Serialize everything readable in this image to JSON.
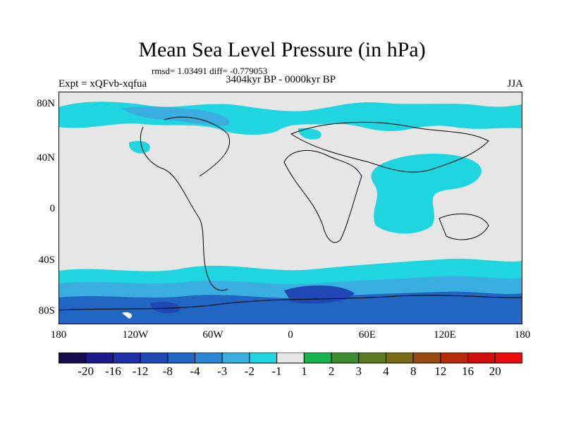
{
  "title": "Mean Sea Level Pressure (in hPa)",
  "stats": "rmsd= 1.03491  diff= -0.779053",
  "experiment": "Expt = xQFvb-xqfua",
  "period": "3404kyr BP - 0000kyr BP",
  "season": "JJA",
  "lat_labels": [
    "80N",
    "40N",
    "0",
    "40S",
    "80S"
  ],
  "lon_labels": [
    "180",
    "120W",
    "60W",
    "0",
    "60E",
    "120E",
    "180"
  ],
  "colorbar": {
    "labels": [
      "-20",
      "-16",
      "-12",
      "-8",
      "-4",
      "-3",
      "-2",
      "-1",
      "1",
      "2",
      "3",
      "4",
      "8",
      "12",
      "16",
      "20"
    ],
    "colors": [
      "#160d4f",
      "#1a1a8c",
      "#1c2fa6",
      "#1f48b5",
      "#2266c4",
      "#2a86d2",
      "#3aaee0",
      "#1fd6e0",
      "#e6e6e6",
      "#19b34d",
      "#3c8c2e",
      "#5c7a1e",
      "#7a6a14",
      "#9a4a10",
      "#b82a0c",
      "#d40e0a",
      "#ec0a0a"
    ]
  },
  "map_colors": {
    "neutral": "#e6e6e6",
    "light": "#1fd6e0",
    "mid": "#3aaee0",
    "deep": "#2266c4",
    "darker": "#1f48b5",
    "coast": "#000000"
  }
}
